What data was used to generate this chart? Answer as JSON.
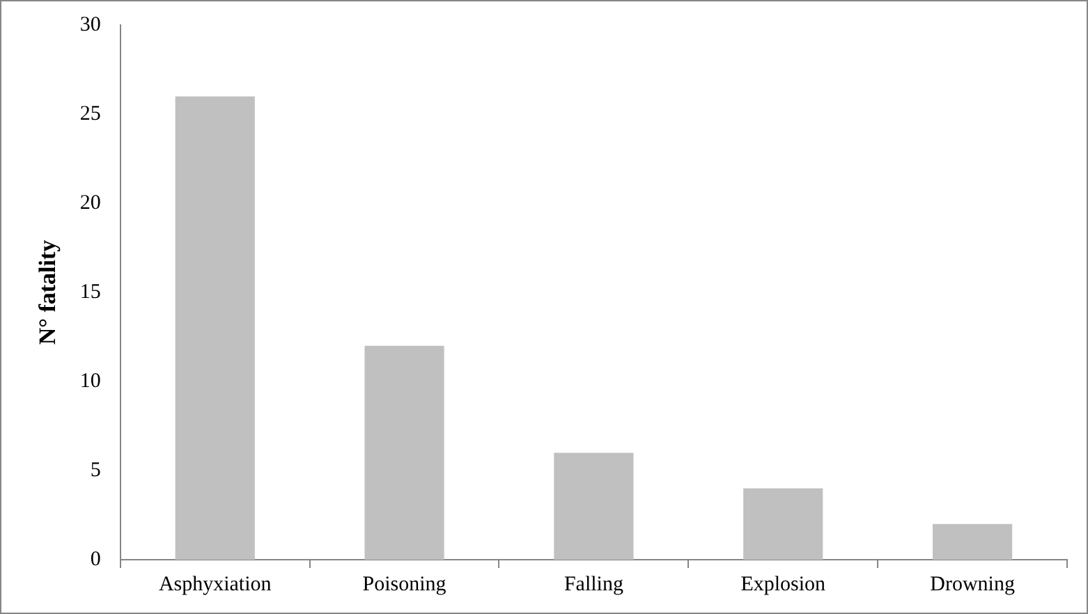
{
  "chart_data": {
    "type": "bar",
    "ylabel": "N° fatality",
    "categories": [
      "Asphyxiation",
      "Poisoning",
      "Falling",
      "Explosion",
      "Drowning"
    ],
    "values": [
      26,
      12,
      6,
      4,
      2
    ],
    "color": "#c0c0c0",
    "ylim": [
      0,
      30
    ],
    "yticks": [
      0,
      5,
      10,
      15,
      20,
      25,
      30
    ],
    "grid": false,
    "legend": false
  }
}
